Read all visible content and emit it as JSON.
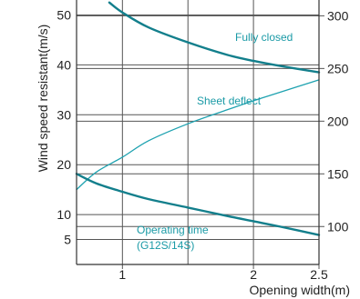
{
  "chart_data": {
    "type": "line",
    "title": "",
    "xlabel": "Opening width(m)",
    "ylabel": "Wind speed resistant(m/s)",
    "y2label": "",
    "x_ticks": [
      "1",
      "2",
      "2.5"
    ],
    "y_ticks": [
      "5",
      "10",
      "20",
      "30",
      "40",
      "50"
    ],
    "y2_ticks": [
      "100",
      "150",
      "200",
      "250",
      "300"
    ],
    "xlim": [
      0.65,
      2.5
    ],
    "ylim": [
      0,
      53
    ],
    "y2lim": [
      64,
      315
    ],
    "grid": true,
    "colors": {
      "thick_curve": "#137f8c",
      "thin_curve": "#1ea2b0",
      "label": "#1a9aa6",
      "grid": "#555555",
      "text": "#222222"
    },
    "series": [
      {
        "name": "",
        "label": "Fully closed",
        "axis": "left",
        "style": "thick",
        "x": [
          0.9,
          1.0,
          1.2,
          1.5,
          1.8,
          2.0,
          2.2,
          2.5
        ],
        "y": [
          52.5,
          50.5,
          47.5,
          44.5,
          42.0,
          40.8,
          39.8,
          38.5
        ]
      },
      {
        "name": "",
        "label": "Sheet deflect",
        "axis": "left",
        "style": "thin",
        "x": [
          0.65,
          0.8,
          1.0,
          1.2,
          1.5,
          1.8,
          2.0,
          2.2,
          2.5
        ],
        "y": [
          15.0,
          18.5,
          21.5,
          24.8,
          28.2,
          31.0,
          32.8,
          34.5,
          37.0
        ]
      },
      {
        "name": "",
        "label": "Operating time",
        "label_line2": "(G12S/14S)",
        "axis": "right",
        "style": "thick",
        "x": [
          0.65,
          0.8,
          1.0,
          1.2,
          1.5,
          1.8,
          2.0,
          2.2,
          2.5
        ],
        "y": [
          150.0,
          141.0,
          133.0,
          126.0,
          118.0,
          110.0,
          105.0,
          100.0,
          92.0
        ]
      }
    ]
  }
}
